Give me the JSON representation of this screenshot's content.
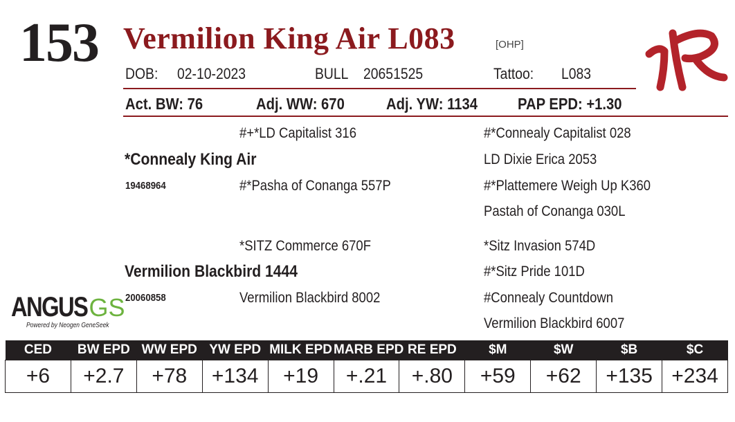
{
  "lot": {
    "number": "153",
    "name": "Vermilion King Air L083",
    "tag": "[OHP]"
  },
  "identity": {
    "dob_label": "DOB:",
    "dob": "02-10-2023",
    "sex": "BULL",
    "registration": "20651525",
    "tattoo_label": "Tattoo:",
    "tattoo": "L083"
  },
  "performance": {
    "act_bw": "Act. BW: 76",
    "adj_ww": "Adj. WW: 670",
    "adj_yw": "Adj. YW: 1134",
    "pap_epd": "PAP EPD: +1.30"
  },
  "pedigree": {
    "sire": {
      "name": "*Connealy King Air",
      "reg": "19468964"
    },
    "dam": {
      "name": "Vermilion Blackbird 1444",
      "reg": "20060858"
    },
    "sire_sire": "#+*LD Capitalist 316",
    "sire_dam": "#*Pasha of Conanga 557P",
    "dam_sire": "*SITZ Commerce 670F",
    "dam_dam": "Vermilion Blackbird 8002",
    "sire_sire_sire": "#*Connealy Capitalist 028",
    "sire_sire_dam": "LD Dixie Erica 2053",
    "sire_dam_sire": "#*Plattemere Weigh Up K360",
    "sire_dam_dam": "Pastah of Conanga 030L",
    "dam_sire_sire": "*Sitz Invasion 574D",
    "dam_sire_dam": "#*Sitz Pride 101D",
    "dam_dam_sire": "#Connealy Countdown",
    "dam_dam_dam": "Vermilion Blackbird 6007"
  },
  "logo": {
    "word": "ANGUS",
    "suffix": "GS",
    "tagline": "Powered by Neogen GeneSeek"
  },
  "epds": {
    "headers": [
      "CED",
      "BW EPD",
      "WW EPD",
      "YW EPD",
      "MILK EPD",
      "MARB EPD",
      "RE EPD",
      "$M",
      "$W",
      "$B",
      "$C"
    ],
    "values": [
      "+6",
      "+2.7",
      "+78",
      "+134",
      "+19",
      "+.21",
      "+.80",
      "+59",
      "+62",
      "+135",
      "+234"
    ]
  },
  "colors": {
    "accent": "#8b1a1e",
    "brand": "#b3232a",
    "text": "#231f20",
    "genomic_green": "#6db33f"
  }
}
